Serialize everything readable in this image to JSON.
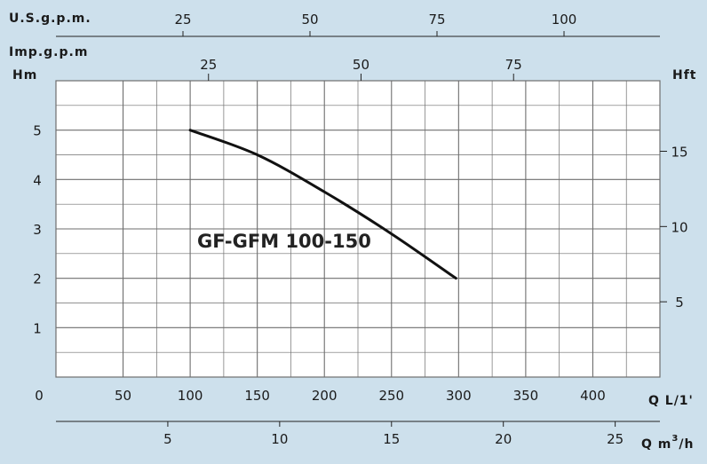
{
  "chart_data": {
    "type": "line",
    "title": "",
    "curve_label": "GF-GFM 100-150",
    "x_primary": {
      "label": "Q L/1'",
      "range": [
        0,
        450
      ],
      "zero_label": "0",
      "ticks": [
        50,
        100,
        150,
        200,
        250,
        300,
        350,
        400
      ]
    },
    "x_usgpm": {
      "label": "U.S.g.p.m.",
      "ticks": [
        25,
        50,
        75,
        100
      ]
    },
    "x_impgpm": {
      "label": "Imp.g.p.m",
      "ticks": [
        25,
        50,
        75
      ]
    },
    "x_m3h": {
      "label_prefix": "Q m",
      "label_sup": "3",
      "label_suffix": "/h",
      "ticks": [
        5,
        10,
        15,
        20,
        25
      ]
    },
    "y_left": {
      "label": "Hm",
      "range": [
        0,
        6
      ],
      "ticks": [
        1,
        2,
        3,
        4,
        5
      ]
    },
    "y_right": {
      "label": "Hft",
      "ticks": [
        5,
        10,
        15
      ]
    },
    "grid": true,
    "series": [
      {
        "color": "#111111",
        "points": [
          {
            "x": 100,
            "y": 5.0
          },
          {
            "x": 150,
            "y": 4.5
          },
          {
            "x": 200,
            "y": 3.75
          },
          {
            "x": 250,
            "y": 2.9
          },
          {
            "x": 298,
            "y": 2.0
          }
        ]
      }
    ],
    "colors": {
      "background": "#cde0ec",
      "plot_background": "#ffffff",
      "grid": "#6e6e6e",
      "text": "#1a1a1a"
    }
  }
}
